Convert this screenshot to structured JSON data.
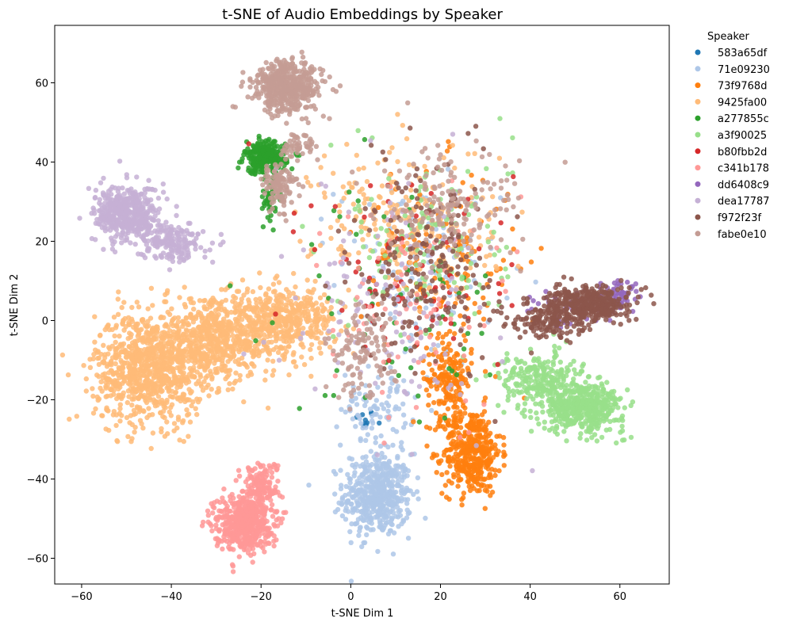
{
  "chart_data": {
    "type": "scatter",
    "title": "t-SNE of Audio Embeddings by Speaker",
    "xlabel": "t-SNE Dim 1",
    "ylabel": "t-SNE Dim 2",
    "xlim": [
      -66,
      71
    ],
    "ylim": [
      -66.5,
      74.5
    ],
    "xticks": [
      -60,
      -40,
      -20,
      0,
      20,
      40,
      60
    ],
    "yticks": [
      -60,
      -40,
      -20,
      0,
      20,
      40,
      60
    ],
    "grid": false,
    "legend": {
      "title": "Speaker",
      "placement": "outside-top-right"
    },
    "series": [
      {
        "name": "583a65df",
        "color": "#1f77b4",
        "clusters": [
          {
            "cx": 3,
            "cy": -25,
            "sx": 1.2,
            "sy": 1.2,
            "n": 10
          }
        ]
      },
      {
        "name": "71e09230",
        "color": "#aec7e8",
        "clusters": [
          {
            "cx": 6,
            "cy": -44,
            "sx": 3.8,
            "sy": 5.2,
            "n": 520
          },
          {
            "cx": 6,
            "cy": -22,
            "sx": 4,
            "sy": 5,
            "n": 90
          },
          {
            "cx": 15,
            "cy": 12,
            "sx": 9,
            "sy": 12,
            "n": 120
          }
        ]
      },
      {
        "name": "73f9768d",
        "color": "#ff7f0e",
        "clusters": [
          {
            "cx": 27,
            "cy": -33,
            "sx": 3.2,
            "sy": 5.5,
            "n": 420
          },
          {
            "cx": 22,
            "cy": -15,
            "sx": 2.5,
            "sy": 5,
            "n": 170
          },
          {
            "cx": 20,
            "cy": 15,
            "sx": 9,
            "sy": 12,
            "n": 140
          }
        ]
      },
      {
        "name": "9425fa00",
        "color": "#ffbb78",
        "clusters": [
          {
            "cx": -45,
            "cy": -12,
            "sx": 6,
            "sy": 7,
            "n": 900
          },
          {
            "cx": -30,
            "cy": -5,
            "sx": 7,
            "sy": 5,
            "n": 600
          },
          {
            "cx": -15,
            "cy": 0,
            "sx": 6,
            "sy": 4,
            "n": 450
          },
          {
            "cx": 12,
            "cy": 25,
            "sx": 10,
            "sy": 10,
            "n": 250
          }
        ]
      },
      {
        "name": "a277855c",
        "color": "#2ca02c",
        "clusters": [
          {
            "cx": -19,
            "cy": 41,
            "sx": 2.3,
            "sy": 2,
            "n": 280
          },
          {
            "cx": -18,
            "cy": 30,
            "sx": 1.2,
            "sy": 2.5,
            "n": 40
          },
          {
            "cx": 10,
            "cy": 5,
            "sx": 12,
            "sy": 15,
            "n": 60
          }
        ]
      },
      {
        "name": "a3f90025",
        "color": "#98df8a",
        "clusters": [
          {
            "cx": 52,
            "cy": -22,
            "sx": 4.5,
            "sy": 3,
            "n": 450
          },
          {
            "cx": 42,
            "cy": -15,
            "sx": 4.5,
            "sy": 3.5,
            "n": 250
          },
          {
            "cx": 18,
            "cy": 20,
            "sx": 9,
            "sy": 12,
            "n": 130
          }
        ]
      },
      {
        "name": "b80fbb2d",
        "color": "#d62728",
        "clusters": [
          {
            "cx": 16,
            "cy": 10,
            "sx": 12,
            "sy": 16,
            "n": 70
          }
        ]
      },
      {
        "name": "c341b178",
        "color": "#ff9896",
        "clusters": [
          {
            "cx": -24,
            "cy": -51,
            "sx": 3.2,
            "sy": 3.5,
            "n": 500
          },
          {
            "cx": -20,
            "cy": -42,
            "sx": 2,
            "sy": 3.5,
            "n": 150
          },
          {
            "cx": 12,
            "cy": 5,
            "sx": 12,
            "sy": 15,
            "n": 80
          }
        ]
      },
      {
        "name": "dd6408c9",
        "color": "#9467bd",
        "clusters": [
          {
            "cx": 60,
            "cy": 6,
            "sx": 2.5,
            "sy": 2,
            "n": 60
          },
          {
            "cx": 50,
            "cy": 3,
            "sx": 5,
            "sy": 2.5,
            "n": 40
          }
        ]
      },
      {
        "name": "dea17787",
        "color": "#c5b0d5",
        "clusters": [
          {
            "cx": -50,
            "cy": 27,
            "sx": 3.5,
            "sy": 3.5,
            "n": 450
          },
          {
            "cx": -40,
            "cy": 20,
            "sx": 3.5,
            "sy": 2.5,
            "n": 200
          },
          {
            "cx": 8,
            "cy": 5,
            "sx": 12,
            "sy": 15,
            "n": 120
          }
        ]
      },
      {
        "name": "f972f23f",
        "color": "#8c564b",
        "clusters": [
          {
            "cx": 53,
            "cy": 4,
            "sx": 4.5,
            "sy": 2.2,
            "n": 380
          },
          {
            "cx": 44,
            "cy": 0,
            "sx": 4,
            "sy": 2.5,
            "n": 150
          },
          {
            "cx": 17,
            "cy": 15,
            "sx": 8,
            "sy": 13,
            "n": 200
          }
        ]
      },
      {
        "name": "fabe0e10",
        "color": "#c49c94",
        "clusters": [
          {
            "cx": -14,
            "cy": 59,
            "sx": 3.8,
            "sy": 3.2,
            "n": 500
          },
          {
            "cx": -16,
            "cy": 34,
            "sx": 2,
            "sy": 3,
            "n": 110
          },
          {
            "cx": -12,
            "cy": 44,
            "sx": 1.8,
            "sy": 2,
            "n": 50
          },
          {
            "cx": 2,
            "cy": -8,
            "sx": 4,
            "sy": 6,
            "n": 120
          },
          {
            "cx": 22,
            "cy": 28,
            "sx": 8,
            "sy": 7,
            "n": 160
          }
        ]
      }
    ]
  }
}
